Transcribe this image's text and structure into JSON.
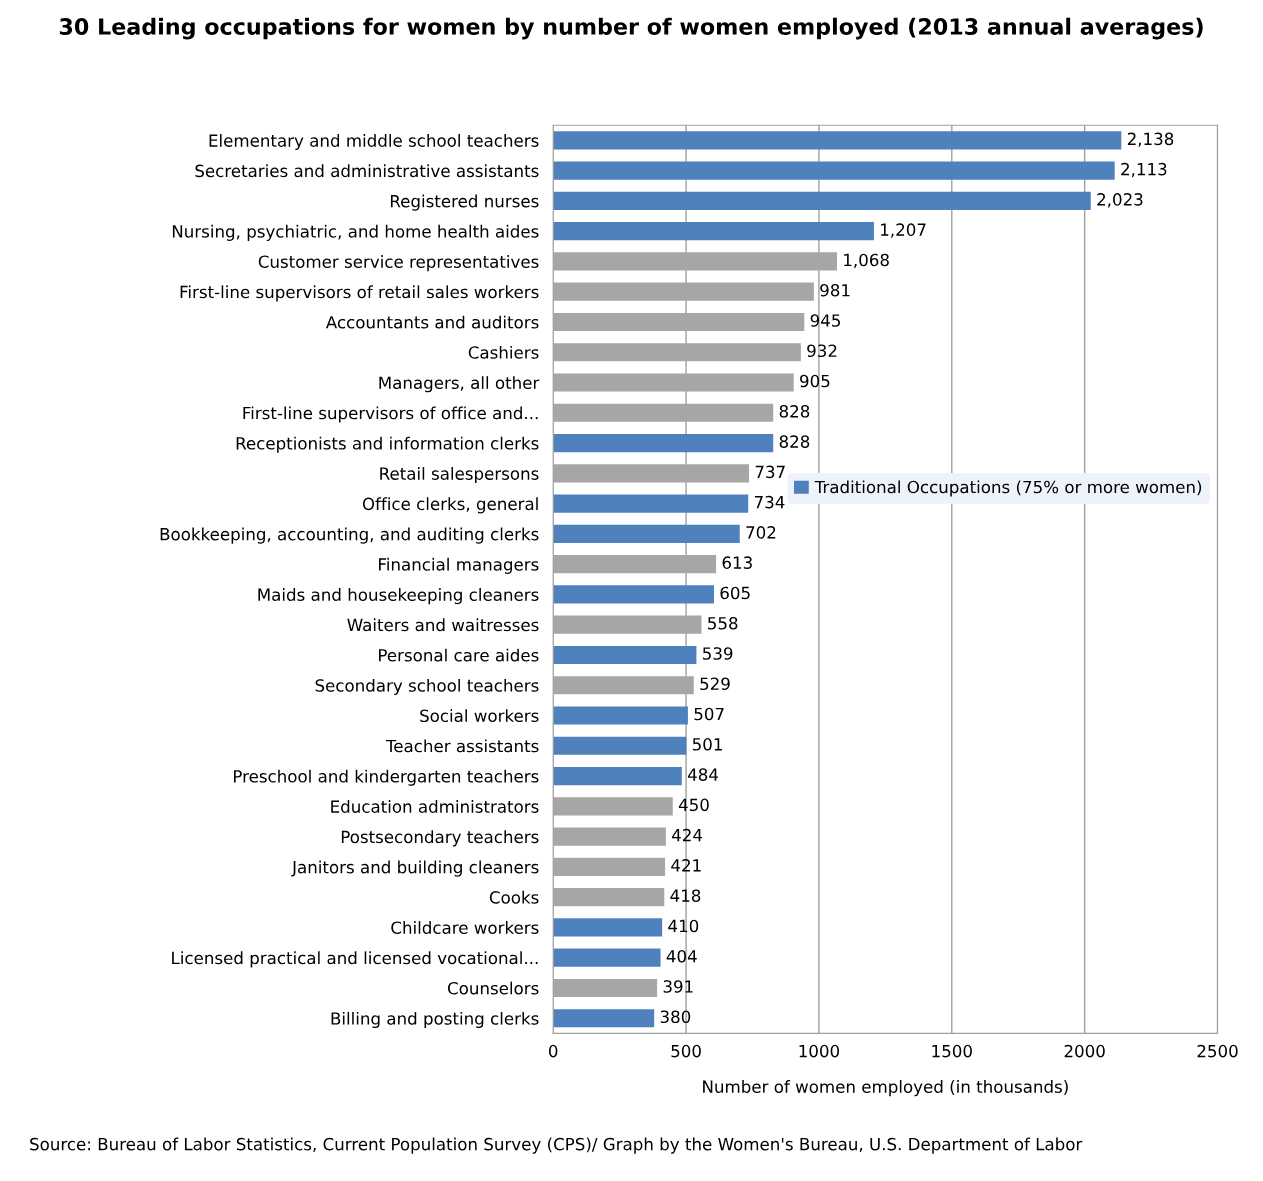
{
  "chart_data": {
    "type": "bar",
    "orientation": "horizontal",
    "stacked": true,
    "title": "30 Leading occupations for women by number of women employed (2013 annual averages)",
    "xlabel": "Number of women employed (in thousands)",
    "categories": [
      "Elementary and middle school teachers",
      "Secretaries and administrative assistants",
      "Registered nurses",
      "Nursing, psychiatric, and home health aides",
      "Customer service representatives",
      "First-line supervisors of retail sales workers",
      "Accountants and auditors",
      "Cashiers",
      "Managers, all other",
      "First-line supervisors of office and...",
      "Receptionists and information clerks",
      "Retail salespersons",
      "Office clerks, general",
      "Bookkeeping, accounting, and auditing clerks",
      "Financial managers",
      "Maids and housekeeping cleaners",
      "Waiters and waitresses",
      "Personal care aides",
      "Secondary school teachers",
      "Social workers",
      "Teacher assistants",
      "Preschool and kindergarten teachers",
      "Education administrators",
      "Postsecondary teachers",
      "Janitors and building cleaners",
      "Cooks",
      "Childcare workers",
      "Licensed practical and licensed vocational...",
      "Counselors",
      "Billing and posting clerks"
    ],
    "series": [
      {
        "name": "Traditional Occupations (75% or more women)",
        "color": "#4f81bd",
        "values": [
          2138,
          2113,
          2023,
          1207,
          null,
          null,
          null,
          null,
          null,
          null,
          828,
          null,
          734,
          702,
          null,
          605,
          null,
          539,
          null,
          507,
          501,
          484,
          null,
          null,
          null,
          null,
          410,
          404,
          null,
          380
        ],
        "value_labels": [
          "2,138",
          "2,113",
          "2,023",
          "1,207",
          null,
          null,
          null,
          null,
          null,
          null,
          "828",
          null,
          "734",
          "702",
          null,
          "605",
          null,
          "539",
          null,
          "507",
          "501",
          "484",
          null,
          null,
          null,
          null,
          "410",
          "404",
          null,
          "380"
        ]
      },
      {
        "color": "#a6a6a6",
        "values": [
          null,
          null,
          null,
          null,
          1068,
          981,
          945,
          932,
          905,
          828,
          null,
          737,
          null,
          null,
          613,
          null,
          558,
          null,
          529,
          null,
          null,
          null,
          450,
          424,
          421,
          418,
          null,
          null,
          391,
          null
        ],
        "value_labels": [
          null,
          null,
          null,
          null,
          "1,068",
          "981",
          "945",
          "932",
          "905",
          "828",
          null,
          "737",
          null,
          null,
          "613",
          null,
          "558",
          null,
          "529",
          null,
          null,
          null,
          "450",
          "424",
          "421",
          "418",
          null,
          null,
          "391",
          null
        ]
      }
    ],
    "xlim": [
      0,
      2500
    ],
    "xticks": [
      0,
      500,
      1000,
      1500,
      2000,
      2500
    ],
    "grid": "x",
    "legend": "right",
    "annotations": [
      "Source: Bureau of Labor Statistics, Current Population Survey (CPS)/ Graph by the Women's Bureau, U.S. Department of Labor"
    ]
  }
}
